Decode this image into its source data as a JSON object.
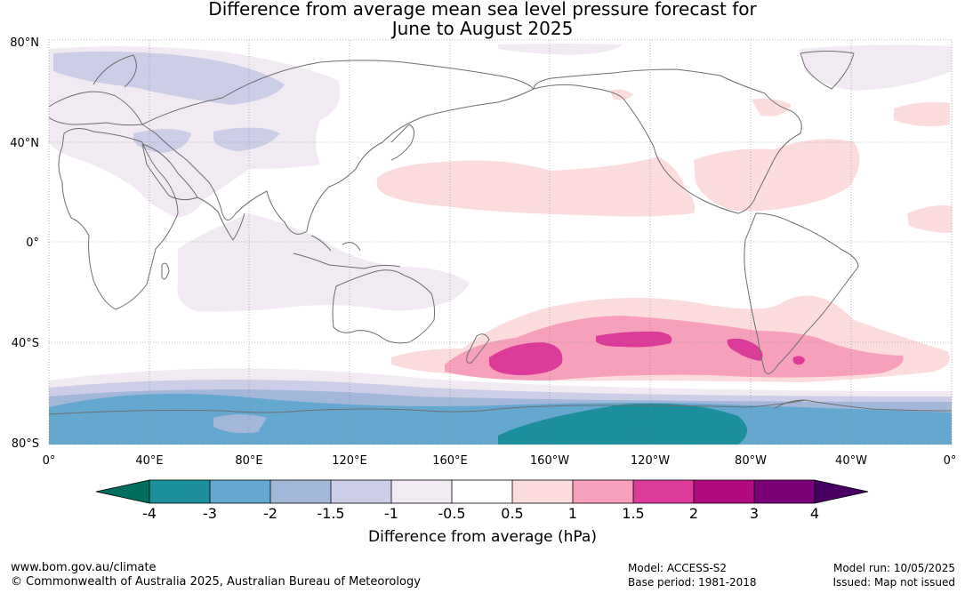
{
  "title": {
    "line1": "Difference from average mean sea level pressure forecast for",
    "line2": "June to August 2025"
  },
  "map": {
    "lat_labels": [
      "80°N",
      "40°N",
      "0°",
      "40°S",
      "80°S"
    ],
    "lon_labels": [
      "0°",
      "40°E",
      "80°E",
      "120°E",
      "160°E",
      "160°W",
      "120°W",
      "80°W",
      "40°W",
      "0°"
    ],
    "gridlines": true,
    "coastline_color": "#6e6e6e"
  },
  "colorbar": {
    "ticks": [
      "-4",
      "-3",
      "-2",
      "-1.5",
      "-1",
      "-0.5",
      "0.5",
      "1",
      "1.5",
      "2",
      "3",
      "4"
    ],
    "colors": [
      "#006d5e",
      "#1b8f9b",
      "#64a8cf",
      "#a3b7d8",
      "#cccde6",
      "#f1eaf3",
      "#ffffff",
      "#fcdcdc",
      "#f7a0bb",
      "#dc3b9a",
      "#b00a7e",
      "#7a0177",
      "#4a0063"
    ],
    "label": "Difference from average (hPa)"
  },
  "footer": {
    "website": "www.bom.gov.au/climate",
    "copyright": "© Commonwealth of Australia 2025, Australian Bureau of Meteorology",
    "model": "Model: ACCESS-S2",
    "base_period": "Base period: 1981-2018",
    "model_run": "Model run: 10/05/2025",
    "issued": "Issued: Map not issued"
  }
}
